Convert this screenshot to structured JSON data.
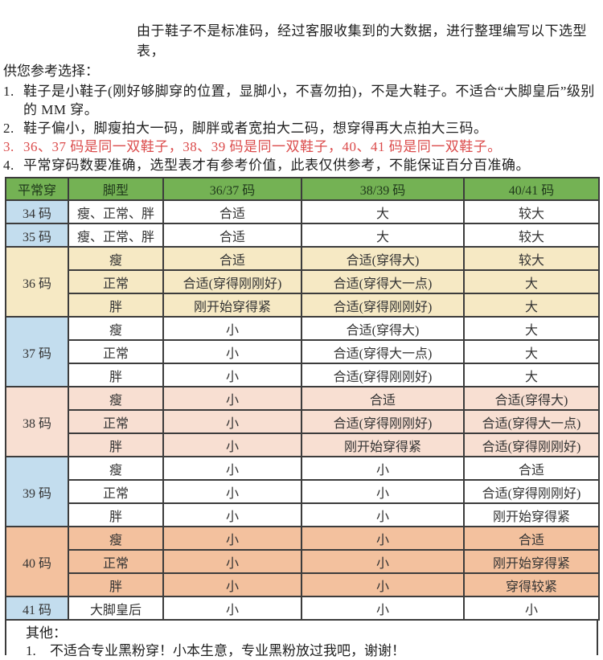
{
  "intro": {
    "line1": "由于鞋子不是标准码，经过客服收集到的大数据，进行整理编写以下选型表，",
    "line2": "供您参考选择：",
    "items": [
      {
        "num": "1.",
        "text": "鞋子是小鞋子(刚好够脚穿的位置，显脚小，不喜勿拍)，不是大鞋子。不适合“大脚皇后”级别的 MM 穿。"
      },
      {
        "num": "2.",
        "text": "鞋子偏小，脚瘦拍大一码，脚胖或者宽拍大二码，想穿得再大点拍大三码。"
      },
      {
        "num": "3.",
        "text": "36、37 码是同一双鞋子，38、39 码是同一双鞋子，40、41 码是同一双鞋子。"
      },
      {
        "num": "4.",
        "text": "平常穿码数要准确，选型表才有参考价值，此表仅供参考，不能保证百分百准确。"
      }
    ]
  },
  "table": {
    "headers": [
      "平常穿",
      "脚型",
      "36/37 码",
      "38/39 码",
      "40/41 码"
    ],
    "groups": [
      {
        "size": "34 码",
        "size_bg": "blue",
        "band_bg": "white",
        "rows": [
          {
            "foot": "瘦、正常、胖",
            "values": [
              "合适",
              "大",
              "较大"
            ]
          }
        ]
      },
      {
        "size": "35 码",
        "size_bg": "blue",
        "band_bg": "white",
        "rows": [
          {
            "foot": "瘦、正常、胖",
            "values": [
              "合适",
              "大",
              "较大"
            ]
          }
        ]
      },
      {
        "size": "36 码",
        "size_bg": "cream",
        "band_bg": "cream",
        "rows": [
          {
            "foot": "瘦",
            "values": [
              "合适",
              "合适(穿得大)",
              "较大"
            ]
          },
          {
            "foot": "正常",
            "values": [
              "合适(穿得刚刚好)",
              "合适(穿得大一点)",
              "大"
            ]
          },
          {
            "foot": "胖",
            "values": [
              "刚开始穿得紧",
              "合适(穿得刚刚好)",
              "大"
            ]
          }
        ]
      },
      {
        "size": "37 码",
        "size_bg": "blue",
        "band_bg": "white",
        "rows": [
          {
            "foot": "瘦",
            "values": [
              "小",
              "合适(穿得大)",
              "大"
            ]
          },
          {
            "foot": "正常",
            "values": [
              "小",
              "合适(穿得大一点)",
              "大"
            ]
          },
          {
            "foot": "胖",
            "values": [
              "小",
              "合适(穿得刚刚好)",
              "大"
            ]
          }
        ]
      },
      {
        "size": "38 码",
        "size_bg": "pink",
        "band_bg": "pink",
        "rows": [
          {
            "foot": "瘦",
            "values": [
              "小",
              "合适",
              "合适(穿得大)"
            ]
          },
          {
            "foot": "正常",
            "values": [
              "小",
              "合适(穿得刚刚好)",
              "合适(穿得大一点)"
            ]
          },
          {
            "foot": "胖",
            "values": [
              "小",
              "刚开始穿得紧",
              "合适(穿得刚刚好)"
            ]
          }
        ]
      },
      {
        "size": "39 码",
        "size_bg": "blue",
        "band_bg": "white",
        "rows": [
          {
            "foot": "瘦",
            "values": [
              "小",
              "小",
              "合适"
            ]
          },
          {
            "foot": "正常",
            "values": [
              "小",
              "小",
              "合适(穿得刚刚好)"
            ]
          },
          {
            "foot": "胖",
            "values": [
              "小",
              "小",
              "刚开始穿得紧"
            ]
          }
        ]
      },
      {
        "size": "40 码",
        "size_bg": "orange",
        "band_bg": "orange",
        "rows": [
          {
            "foot": "瘦",
            "values": [
              "小",
              "小",
              "合适"
            ]
          },
          {
            "foot": "正常",
            "values": [
              "小",
              "小",
              "刚开始穿得紧"
            ]
          },
          {
            "foot": "胖",
            "values": [
              "小",
              "小",
              "穿得较紧"
            ]
          }
        ]
      },
      {
        "size": "41 码",
        "size_bg": "blue",
        "band_bg": "white",
        "rows": [
          {
            "foot": "大脚皇后",
            "values": [
              "小",
              "小",
              "小"
            ]
          }
        ]
      }
    ]
  },
  "notes": {
    "title": "其他：",
    "items": [
      {
        "num": "1.",
        "text": "不适合专业黑粉穿！小本生意，专业黑粉放过我吧，谢谢！"
      }
    ]
  },
  "colors": {
    "header_green": "#74b254",
    "size_blue": "#c3ddee",
    "band_cream": "#f6e9c4",
    "band_pink": "#f8dfd2",
    "band_orange": "#f3c19e",
    "red_text": "#db4b4b"
  }
}
